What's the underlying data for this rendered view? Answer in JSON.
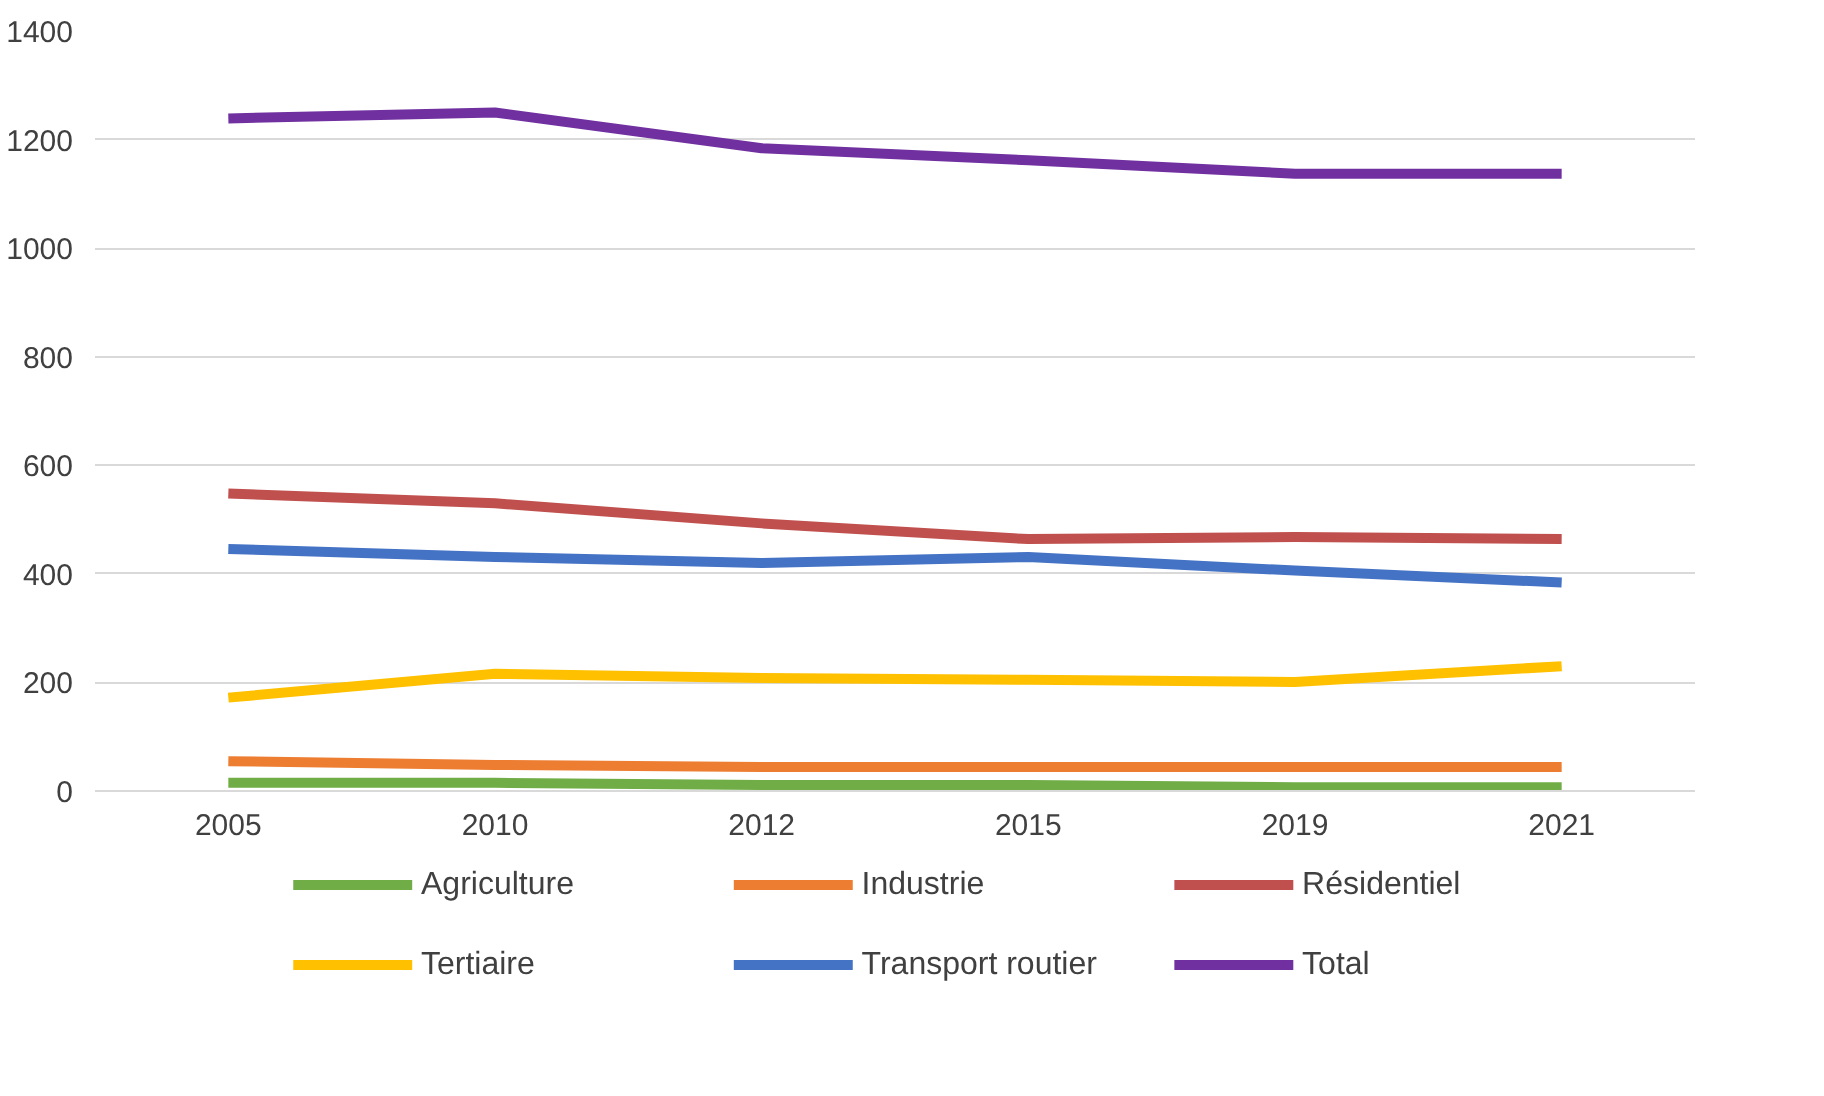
{
  "chart_data": {
    "type": "line",
    "categories": [
      "2005",
      "2010",
      "2012",
      "2015",
      "2019",
      "2021"
    ],
    "ylim": [
      0,
      1400
    ],
    "yticks": [
      0,
      200,
      400,
      600,
      800,
      1000,
      1200,
      1400
    ],
    "grid": "y",
    "legend": "bottom",
    "line_style": "solid",
    "marker": "none",
    "series": [
      {
        "name": "Agriculture",
        "color": "#70ad47",
        "values": [
          15,
          15,
          11,
          11,
          7,
          7
        ]
      },
      {
        "name": "Industrie",
        "color": "#ed7d31",
        "values": [
          55,
          48,
          44,
          44,
          44,
          44
        ]
      },
      {
        "name": "Résidentiel",
        "color": "#c0504d",
        "values": [
          548,
          530,
          493,
          464,
          468,
          464
        ]
      },
      {
        "name": "Tertiaire",
        "color": "#ffc000",
        "values": [
          172,
          216,
          208,
          205,
          201,
          230
        ]
      },
      {
        "name": "Transport routier",
        "color": "#4472c4",
        "values": [
          446,
          431,
          420,
          431,
          406,
          384
        ]
      },
      {
        "name": "Total",
        "color": "#7030a0",
        "values": [
          1239,
          1250,
          1184,
          1162,
          1137,
          1137
        ]
      }
    ]
  }
}
